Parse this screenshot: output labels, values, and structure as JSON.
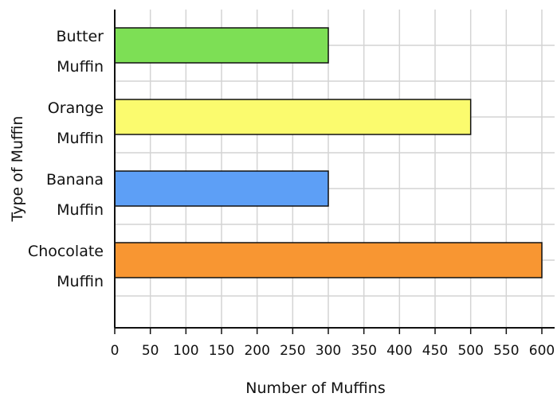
{
  "chart_data": {
    "type": "bar",
    "orientation": "horizontal",
    "categories": [
      "Butter Muffin",
      "Orange Muffin",
      "Banana Muffin",
      "Chocolate Muffin"
    ],
    "category_lines": [
      [
        "Butter",
        "Muffin"
      ],
      [
        "Orange",
        "Muffin"
      ],
      [
        "Banana",
        "Muffin"
      ],
      [
        "Chocolate",
        "Muffin"
      ]
    ],
    "values": [
      300,
      500,
      300,
      600
    ],
    "bar_colors": [
      "#7ddf55",
      "#fbfb6e",
      "#5d9ff6",
      "#f89632"
    ],
    "title": "",
    "xlabel": "Number of Muffins",
    "ylabel": "Type of Muffin",
    "xlim": [
      0,
      600
    ],
    "xticks": [
      0,
      50,
      100,
      150,
      200,
      250,
      300,
      350,
      400,
      450,
      500,
      550,
      600
    ],
    "grid": true
  }
}
